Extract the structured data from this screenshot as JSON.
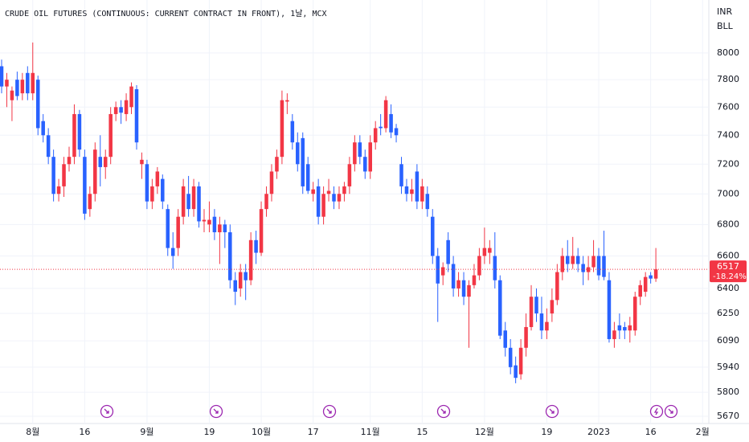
{
  "chart_data": {
    "type": "candlestick",
    "title": "CRUDE OIL FUTURES (CONTINUOUS: CURRENT CONTRACT IN FRONT), 1날, MCX",
    "currency": "INR",
    "unit": "BLL",
    "log_scale": true,
    "grid": true,
    "up_color": "#f23645",
    "down_color": "#2962ff",
    "ylim": [
      5631,
      8412
    ],
    "yticks": [
      5670,
      5800,
      5940,
      6090,
      6250,
      6400,
      6600,
      6800,
      7000,
      7200,
      7400,
      7600,
      7800,
      8000
    ],
    "xlim": [
      -0.31,
      136.2
    ],
    "xticks": [
      {
        "value": 6,
        "label": "8월"
      },
      {
        "value": 16,
        "label": "16"
      },
      {
        "value": 28,
        "label": "9월"
      },
      {
        "value": 40,
        "label": "19"
      },
      {
        "value": 50,
        "label": "10월"
      },
      {
        "value": 60,
        "label": "17"
      },
      {
        "value": 71,
        "label": "11월"
      },
      {
        "value": 81,
        "label": "15"
      },
      {
        "value": 93,
        "label": "12월"
      },
      {
        "value": 105,
        "label": "19"
      },
      {
        "value": 115,
        "label": "2023"
      },
      {
        "value": 125,
        "label": "16"
      },
      {
        "value": 135,
        "label": "2월"
      }
    ],
    "last_price": 6517,
    "last_change": "-18.24%",
    "ohlc": [
      [
        7900,
        7950,
        7700,
        7750
      ],
      [
        7750,
        7850,
        7600,
        7800
      ],
      [
        7650,
        7750,
        7500,
        7720
      ],
      [
        7800,
        7860,
        7650,
        7680
      ],
      [
        7700,
        7850,
        7650,
        7800
      ],
      [
        7850,
        7900,
        7650,
        7700
      ],
      [
        7700,
        8080,
        7650,
        7850
      ],
      [
        7800,
        7830,
        7400,
        7450
      ],
      [
        7500,
        7550,
        7350,
        7400
      ],
      [
        7400,
        7450,
        7200,
        7250
      ],
      [
        7250,
        7300,
        6950,
        7000
      ],
      [
        7000,
        7100,
        6950,
        7050
      ],
      [
        7050,
        7250,
        6980,
        7200
      ],
      [
        7200,
        7320,
        7150,
        7250
      ],
      [
        7250,
        7620,
        7200,
        7550
      ],
      [
        7550,
        7580,
        7250,
        7300
      ],
      [
        7250,
        7300,
        6830,
        6870
      ],
      [
        6900,
        7050,
        6850,
        7000
      ],
      [
        7000,
        7350,
        6950,
        7300
      ],
      [
        7250,
        7400,
        7050,
        7180
      ],
      [
        7180,
        7300,
        7100,
        7250
      ],
      [
        7250,
        7600,
        7200,
        7550
      ],
      [
        7550,
        7640,
        7500,
        7600
      ],
      [
        7600,
        7650,
        7480,
        7560
      ],
      [
        7550,
        7700,
        7500,
        7650
      ],
      [
        7600,
        7780,
        7550,
        7750
      ],
      [
        7730,
        7760,
        7300,
        7350
      ],
      [
        7200,
        7280,
        7100,
        7230
      ],
      [
        7200,
        7230,
        6900,
        6950
      ],
      [
        6950,
        7100,
        6900,
        7050
      ],
      [
        7050,
        7180,
        7000,
        7150
      ],
      [
        7100,
        7130,
        6900,
        6950
      ],
      [
        6900,
        6930,
        6600,
        6650
      ],
      [
        6650,
        6750,
        6520,
        6600
      ],
      [
        6650,
        6900,
        6600,
        6850
      ],
      [
        6850,
        7100,
        6800,
        7050
      ],
      [
        7000,
        7120,
        6850,
        6900
      ],
      [
        6900,
        7100,
        6850,
        7050
      ],
      [
        7050,
        7080,
        6780,
        6820
      ],
      [
        6820,
        6900,
        6750,
        6830
      ],
      [
        6800,
        6950,
        6750,
        6830
      ],
      [
        6850,
        6900,
        6700,
        6750
      ],
      [
        6750,
        6850,
        6550,
        6800
      ],
      [
        6800,
        6830,
        6650,
        6750
      ],
      [
        6750,
        6800,
        6400,
        6450
      ],
      [
        6450,
        6500,
        6300,
        6380
      ],
      [
        6400,
        6550,
        6350,
        6500
      ],
      [
        6500,
        6550,
        6330,
        6450
      ],
      [
        6450,
        6750,
        6420,
        6700
      ],
      [
        6700,
        6760,
        6550,
        6620
      ],
      [
        6620,
        6950,
        6600,
        6900
      ],
      [
        6900,
        7050,
        6850,
        7000
      ],
      [
        7000,
        7200,
        6950,
        7150
      ],
      [
        7150,
        7300,
        7100,
        7250
      ],
      [
        7250,
        7720,
        7200,
        7650
      ],
      [
        7640,
        7700,
        7550,
        7650
      ],
      [
        7500,
        7550,
        7300,
        7350
      ],
      [
        7350,
        7420,
        7150,
        7200
      ],
      [
        7380,
        7420,
        7000,
        7050
      ],
      [
        7200,
        7250,
        7000,
        7020
      ],
      [
        7000,
        7080,
        6950,
        7030
      ],
      [
        7050,
        7100,
        6800,
        6850
      ],
      [
        6850,
        7050,
        6800,
        7000
      ],
      [
        7000,
        7100,
        6950,
        7020
      ],
      [
        7000,
        7050,
        6900,
        6950
      ],
      [
        6950,
        7050,
        6900,
        7000
      ],
      [
        7000,
        7080,
        6950,
        7050
      ],
      [
        7050,
        7250,
        7000,
        7200
      ],
      [
        7200,
        7400,
        7150,
        7350
      ],
      [
        7350,
        7400,
        7200,
        7250
      ],
      [
        7250,
        7300,
        7100,
        7150
      ],
      [
        7150,
        7400,
        7100,
        7350
      ],
      [
        7350,
        7500,
        7300,
        7450
      ],
      [
        7460,
        7550,
        7400,
        7450
      ],
      [
        7450,
        7680,
        7420,
        7650
      ],
      [
        7550,
        7620,
        7380,
        7420
      ],
      [
        7450,
        7480,
        7350,
        7400
      ],
      [
        7200,
        7250,
        7000,
        7050
      ],
      [
        7050,
        7100,
        6950,
        7000
      ],
      [
        7000,
        7100,
        6950,
        7030
      ],
      [
        7150,
        7200,
        6900,
        6950
      ],
      [
        6950,
        7100,
        6900,
        7050
      ],
      [
        7000,
        7050,
        6850,
        6900
      ],
      [
        6850,
        6900,
        6550,
        6600
      ],
      [
        6600,
        6650,
        6200,
        6430
      ],
      [
        6480,
        6560,
        6420,
        6530
      ],
      [
        6700,
        6750,
        6500,
        6550
      ],
      [
        6550,
        6600,
        6350,
        6400
      ],
      [
        6400,
        6500,
        6350,
        6450
      ],
      [
        6450,
        6500,
        6300,
        6350
      ],
      [
        6350,
        6450,
        6050,
        6420
      ],
      [
        6420,
        6550,
        6400,
        6480
      ],
      [
        6480,
        6650,
        6450,
        6600
      ],
      [
        6600,
        6780,
        6550,
        6650
      ],
      [
        6620,
        6700,
        6550,
        6650
      ],
      [
        6600,
        6750,
        6400,
        6450
      ],
      [
        6450,
        6480,
        6100,
        6120
      ],
      [
        6150,
        6200,
        6000,
        6050
      ],
      [
        6050,
        6100,
        5900,
        5940
      ],
      [
        5950,
        6000,
        5850,
        5880
      ],
      [
        5900,
        6100,
        5870,
        6050
      ],
      [
        6050,
        6250,
        6000,
        6170
      ],
      [
        6170,
        6420,
        6150,
        6350
      ],
      [
        6350,
        6400,
        6200,
        6250
      ],
      [
        6250,
        6350,
        6100,
        6150
      ],
      [
        6150,
        6280,
        6100,
        6200
      ],
      [
        6250,
        6400,
        6200,
        6330
      ],
      [
        6330,
        6550,
        6300,
        6500
      ],
      [
        6500,
        6650,
        6450,
        6600
      ],
      [
        6600,
        6700,
        6500,
        6550
      ],
      [
        6550,
        6720,
        6520,
        6600
      ],
      [
        6600,
        6650,
        6500,
        6550
      ],
      [
        6550,
        6600,
        6420,
        6500
      ],
      [
        6500,
        6600,
        6450,
        6530
      ],
      [
        6530,
        6700,
        6500,
        6600
      ],
      [
        6600,
        6650,
        6450,
        6480
      ],
      [
        6600,
        6760,
        6450,
        6470
      ],
      [
        6450,
        6500,
        6080,
        6100
      ],
      [
        6100,
        6200,
        6050,
        6150
      ],
      [
        6180,
        6250,
        6100,
        6150
      ],
      [
        6170,
        6200,
        6100,
        6150
      ],
      [
        6150,
        6230,
        6080,
        6180
      ],
      [
        6150,
        6380,
        6120,
        6350
      ],
      [
        6350,
        6450,
        6300,
        6420
      ],
      [
        6380,
        6500,
        6350,
        6470
      ],
      [
        6480,
        6500,
        6430,
        6460
      ],
      [
        6460,
        6650,
        6440,
        6517
      ]
    ]
  }
}
